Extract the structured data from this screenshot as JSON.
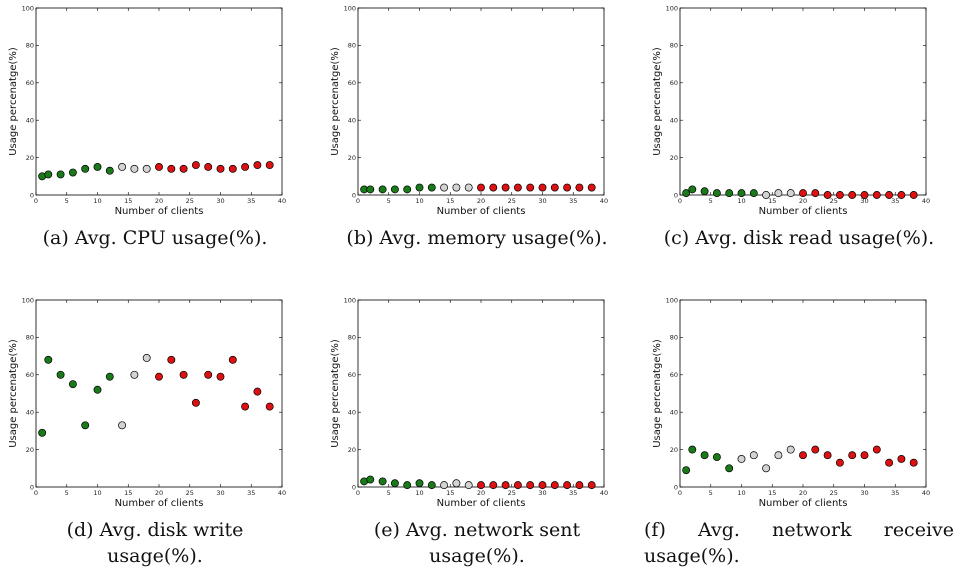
{
  "chart_data": [
    {
      "type": "scatter",
      "caption": [
        "(a) Avg. CPU usage(%)."
      ],
      "xlabel": "Number of clients",
      "ylabel": "Usage percenatge(%)",
      "xlim": [
        0,
        40
      ],
      "ylim": [
        0,
        100
      ],
      "x_ticks": [
        0,
        5,
        10,
        15,
        20,
        25,
        30,
        35,
        40
      ],
      "y_ticks": [
        0,
        20,
        40,
        60,
        80,
        100
      ],
      "grid": false,
      "points": [
        {
          "x": 1,
          "y": 10,
          "color": "#1a7a1a"
        },
        {
          "x": 2,
          "y": 11,
          "color": "#1a7a1a"
        },
        {
          "x": 4,
          "y": 11,
          "color": "#1a7a1a"
        },
        {
          "x": 6,
          "y": 12,
          "color": "#1a7a1a"
        },
        {
          "x": 8,
          "y": 14,
          "color": "#1a7a1a"
        },
        {
          "x": 10,
          "y": 15,
          "color": "#1a7a1a"
        },
        {
          "x": 12,
          "y": 13,
          "color": "#1a7a1a"
        },
        {
          "x": 14,
          "y": 15,
          "color": "#d3d3d3"
        },
        {
          "x": 16,
          "y": 14,
          "color": "#d3d3d3"
        },
        {
          "x": 18,
          "y": 14,
          "color": "#d3d3d3"
        },
        {
          "x": 20,
          "y": 15,
          "color": "#dd1111"
        },
        {
          "x": 22,
          "y": 14,
          "color": "#dd1111"
        },
        {
          "x": 24,
          "y": 14,
          "color": "#dd1111"
        },
        {
          "x": 26,
          "y": 16,
          "color": "#dd1111"
        },
        {
          "x": 28,
          "y": 15,
          "color": "#dd1111"
        },
        {
          "x": 30,
          "y": 14,
          "color": "#dd1111"
        },
        {
          "x": 32,
          "y": 14,
          "color": "#dd1111"
        },
        {
          "x": 34,
          "y": 15,
          "color": "#dd1111"
        },
        {
          "x": 36,
          "y": 16,
          "color": "#dd1111"
        },
        {
          "x": 38,
          "y": 16,
          "color": "#dd1111"
        }
      ]
    },
    {
      "type": "scatter",
      "caption": [
        "(b) Avg. memory usage(%)."
      ],
      "xlabel": "Number of clients",
      "ylabel": "Usage percenatge(%)",
      "xlim": [
        0,
        40
      ],
      "ylim": [
        0,
        100
      ],
      "x_ticks": [
        0,
        5,
        10,
        15,
        20,
        25,
        30,
        35,
        40
      ],
      "y_ticks": [
        0,
        20,
        40,
        60,
        80,
        100
      ],
      "grid": false,
      "points": [
        {
          "x": 1,
          "y": 3,
          "color": "#1a7a1a"
        },
        {
          "x": 2,
          "y": 3,
          "color": "#1a7a1a"
        },
        {
          "x": 4,
          "y": 3,
          "color": "#1a7a1a"
        },
        {
          "x": 6,
          "y": 3,
          "color": "#1a7a1a"
        },
        {
          "x": 8,
          "y": 3,
          "color": "#1a7a1a"
        },
        {
          "x": 10,
          "y": 4,
          "color": "#1a7a1a"
        },
        {
          "x": 12,
          "y": 4,
          "color": "#1a7a1a"
        },
        {
          "x": 14,
          "y": 4,
          "color": "#d3d3d3"
        },
        {
          "x": 16,
          "y": 4,
          "color": "#d3d3d3"
        },
        {
          "x": 18,
          "y": 4,
          "color": "#d3d3d3"
        },
        {
          "x": 20,
          "y": 4,
          "color": "#dd1111"
        },
        {
          "x": 22,
          "y": 4,
          "color": "#dd1111"
        },
        {
          "x": 24,
          "y": 4,
          "color": "#dd1111"
        },
        {
          "x": 26,
          "y": 4,
          "color": "#dd1111"
        },
        {
          "x": 28,
          "y": 4,
          "color": "#dd1111"
        },
        {
          "x": 30,
          "y": 4,
          "color": "#dd1111"
        },
        {
          "x": 32,
          "y": 4,
          "color": "#dd1111"
        },
        {
          "x": 34,
          "y": 4,
          "color": "#dd1111"
        },
        {
          "x": 36,
          "y": 4,
          "color": "#dd1111"
        },
        {
          "x": 38,
          "y": 4,
          "color": "#dd1111"
        }
      ]
    },
    {
      "type": "scatter",
      "caption": [
        "(c) Avg. disk read usage(%)."
      ],
      "xlabel": "Number of clients",
      "ylabel": "Usage percenatge(%)",
      "xlim": [
        0,
        40
      ],
      "ylim": [
        0,
        100
      ],
      "x_ticks": [
        0,
        5,
        10,
        15,
        20,
        25,
        30,
        35,
        40
      ],
      "y_ticks": [
        0,
        20,
        40,
        60,
        80,
        100
      ],
      "grid": false,
      "points": [
        {
          "x": 1,
          "y": 1,
          "color": "#1a7a1a"
        },
        {
          "x": 2,
          "y": 3,
          "color": "#1a7a1a"
        },
        {
          "x": 4,
          "y": 2,
          "color": "#1a7a1a"
        },
        {
          "x": 6,
          "y": 1,
          "color": "#1a7a1a"
        },
        {
          "x": 8,
          "y": 1,
          "color": "#1a7a1a"
        },
        {
          "x": 10,
          "y": 1,
          "color": "#1a7a1a"
        },
        {
          "x": 12,
          "y": 1,
          "color": "#1a7a1a"
        },
        {
          "x": 14,
          "y": 0,
          "color": "#d3d3d3"
        },
        {
          "x": 16,
          "y": 1,
          "color": "#d3d3d3"
        },
        {
          "x": 18,
          "y": 1,
          "color": "#d3d3d3"
        },
        {
          "x": 20,
          "y": 1,
          "color": "#dd1111"
        },
        {
          "x": 22,
          "y": 1,
          "color": "#dd1111"
        },
        {
          "x": 24,
          "y": 0,
          "color": "#dd1111"
        },
        {
          "x": 26,
          "y": 0,
          "color": "#dd1111"
        },
        {
          "x": 28,
          "y": 0,
          "color": "#dd1111"
        },
        {
          "x": 30,
          "y": 0,
          "color": "#dd1111"
        },
        {
          "x": 32,
          "y": 0,
          "color": "#dd1111"
        },
        {
          "x": 34,
          "y": 0,
          "color": "#dd1111"
        },
        {
          "x": 36,
          "y": 0,
          "color": "#dd1111"
        },
        {
          "x": 38,
          "y": 0,
          "color": "#dd1111"
        }
      ]
    },
    {
      "type": "scatter",
      "caption": [
        "(d) Avg. disk write",
        "usage(%)."
      ],
      "xlabel": "Number of clients",
      "ylabel": "Usage percenatge(%)",
      "xlim": [
        0,
        40
      ],
      "ylim": [
        0,
        100
      ],
      "x_ticks": [
        0,
        5,
        10,
        15,
        20,
        25,
        30,
        35,
        40
      ],
      "y_ticks": [
        0,
        20,
        40,
        60,
        80,
        100
      ],
      "grid": false,
      "points": [
        {
          "x": 1,
          "y": 29,
          "color": "#1a7a1a"
        },
        {
          "x": 2,
          "y": 68,
          "color": "#1a7a1a"
        },
        {
          "x": 4,
          "y": 60,
          "color": "#1a7a1a"
        },
        {
          "x": 6,
          "y": 55,
          "color": "#1a7a1a"
        },
        {
          "x": 8,
          "y": 33,
          "color": "#1a7a1a"
        },
        {
          "x": 10,
          "y": 52,
          "color": "#1a7a1a"
        },
        {
          "x": 12,
          "y": 59,
          "color": "#1a7a1a"
        },
        {
          "x": 14,
          "y": 33,
          "color": "#d3d3d3"
        },
        {
          "x": 16,
          "y": 60,
          "color": "#d3d3d3"
        },
        {
          "x": 18,
          "y": 69,
          "color": "#d3d3d3"
        },
        {
          "x": 20,
          "y": 59,
          "color": "#dd1111"
        },
        {
          "x": 22,
          "y": 68,
          "color": "#dd1111"
        },
        {
          "x": 24,
          "y": 60,
          "color": "#dd1111"
        },
        {
          "x": 26,
          "y": 45,
          "color": "#dd1111"
        },
        {
          "x": 28,
          "y": 60,
          "color": "#dd1111"
        },
        {
          "x": 30,
          "y": 59,
          "color": "#dd1111"
        },
        {
          "x": 32,
          "y": 68,
          "color": "#dd1111"
        },
        {
          "x": 34,
          "y": 43,
          "color": "#dd1111"
        },
        {
          "x": 36,
          "y": 51,
          "color": "#dd1111"
        },
        {
          "x": 38,
          "y": 43,
          "color": "#dd1111"
        }
      ]
    },
    {
      "type": "scatter",
      "caption": [
        "(e) Avg. network sent",
        "usage(%)."
      ],
      "xlabel": "Number of clients",
      "ylabel": "Usage percenatge(%)",
      "xlim": [
        0,
        40
      ],
      "ylim": [
        0,
        100
      ],
      "x_ticks": [
        0,
        5,
        10,
        15,
        20,
        25,
        30,
        35,
        40
      ],
      "y_ticks": [
        0,
        20,
        40,
        60,
        80,
        100
      ],
      "grid": false,
      "points": [
        {
          "x": 1,
          "y": 3,
          "color": "#1a7a1a"
        },
        {
          "x": 2,
          "y": 4,
          "color": "#1a7a1a"
        },
        {
          "x": 4,
          "y": 3,
          "color": "#1a7a1a"
        },
        {
          "x": 6,
          "y": 2,
          "color": "#1a7a1a"
        },
        {
          "x": 8,
          "y": 1,
          "color": "#1a7a1a"
        },
        {
          "x": 10,
          "y": 2,
          "color": "#1a7a1a"
        },
        {
          "x": 12,
          "y": 1,
          "color": "#1a7a1a"
        },
        {
          "x": 14,
          "y": 1,
          "color": "#d3d3d3"
        },
        {
          "x": 16,
          "y": 2,
          "color": "#d3d3d3"
        },
        {
          "x": 18,
          "y": 1,
          "color": "#d3d3d3"
        },
        {
          "x": 20,
          "y": 1,
          "color": "#dd1111"
        },
        {
          "x": 22,
          "y": 1,
          "color": "#dd1111"
        },
        {
          "x": 24,
          "y": 1,
          "color": "#dd1111"
        },
        {
          "x": 26,
          "y": 1,
          "color": "#dd1111"
        },
        {
          "x": 28,
          "y": 1,
          "color": "#dd1111"
        },
        {
          "x": 30,
          "y": 1,
          "color": "#dd1111"
        },
        {
          "x": 32,
          "y": 1,
          "color": "#dd1111"
        },
        {
          "x": 34,
          "y": 1,
          "color": "#dd1111"
        },
        {
          "x": 36,
          "y": 1,
          "color": "#dd1111"
        },
        {
          "x": 38,
          "y": 1,
          "color": "#dd1111"
        }
      ]
    },
    {
      "type": "scatter",
      "caption": [
        "(f) Avg. network receive",
        "usage(%)."
      ],
      "xlabel": "Number of clients",
      "ylabel": "Usage percenatge(%)",
      "xlim": [
        0,
        40
      ],
      "ylim": [
        0,
        100
      ],
      "x_ticks": [
        0,
        5,
        10,
        15,
        20,
        25,
        30,
        35,
        40
      ],
      "y_ticks": [
        0,
        20,
        40,
        60,
        80,
        100
      ],
      "grid": false,
      "points": [
        {
          "x": 1,
          "y": 9,
          "color": "#1a7a1a"
        },
        {
          "x": 2,
          "y": 20,
          "color": "#1a7a1a"
        },
        {
          "x": 4,
          "y": 17,
          "color": "#1a7a1a"
        },
        {
          "x": 6,
          "y": 16,
          "color": "#1a7a1a"
        },
        {
          "x": 8,
          "y": 10,
          "color": "#1a7a1a"
        },
        {
          "x": 10,
          "y": 15,
          "color": "#d3d3d3"
        },
        {
          "x": 12,
          "y": 17,
          "color": "#d3d3d3"
        },
        {
          "x": 14,
          "y": 10,
          "color": "#d3d3d3"
        },
        {
          "x": 16,
          "y": 17,
          "color": "#d3d3d3"
        },
        {
          "x": 18,
          "y": 20,
          "color": "#d3d3d3"
        },
        {
          "x": 20,
          "y": 17,
          "color": "#dd1111"
        },
        {
          "x": 22,
          "y": 20,
          "color": "#dd1111"
        },
        {
          "x": 24,
          "y": 17,
          "color": "#dd1111"
        },
        {
          "x": 26,
          "y": 13,
          "color": "#dd1111"
        },
        {
          "x": 28,
          "y": 17,
          "color": "#dd1111"
        },
        {
          "x": 30,
          "y": 17,
          "color": "#dd1111"
        },
        {
          "x": 32,
          "y": 20,
          "color": "#dd1111"
        },
        {
          "x": 34,
          "y": 13,
          "color": "#dd1111"
        },
        {
          "x": 36,
          "y": 15,
          "color": "#dd1111"
        },
        {
          "x": 38,
          "y": 13,
          "color": "#dd1111"
        }
      ]
    }
  ]
}
